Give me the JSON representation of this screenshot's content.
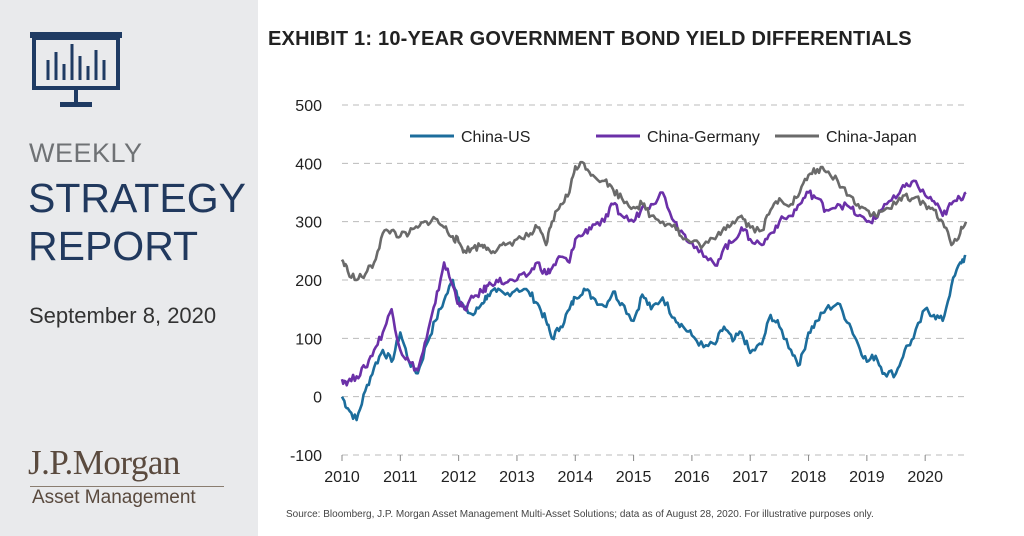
{
  "sidebar": {
    "weekly": "WEEKLY",
    "strategy_line1": "STRATEGY",
    "strategy_line2": "REPORT",
    "date": "September 8, 2020",
    "logo_main": "J.P.Morgan",
    "logo_sub": "Asset Management"
  },
  "source_note": "Source: Bloomberg, J.P. Morgan Asset Management Multi-Asset Solutions; data as of August 28, 2020. For illustrative purposes only.",
  "colors": {
    "china_us": "#1c6d9c",
    "china_germany": "#6b30a8",
    "china_japan": "#6a6a6a",
    "navy": "#21395e"
  },
  "chart_data": {
    "type": "line",
    "title": "EXHIBIT 1: 10-YEAR GOVERNMENT BOND YIELD DIFFERENTIALS",
    "xlabel": "",
    "ylabel": "",
    "ylim": [
      -100,
      500
    ],
    "xlim": [
      2010,
      2020.7
    ],
    "yticks": [
      "-100",
      "0",
      "100",
      "200",
      "300",
      "400",
      "500"
    ],
    "xticks": [
      "2010",
      "2011",
      "2012",
      "2013",
      "2014",
      "2015",
      "2016",
      "2017",
      "2018",
      "2019",
      "2020"
    ],
    "legend": "top",
    "series": [
      {
        "name": "China-US",
        "x": [
          2010,
          2010.1,
          2010.25,
          2010.4,
          2010.55,
          2010.7,
          2010.85,
          2011,
          2011.15,
          2011.3,
          2011.45,
          2011.6,
          2011.75,
          2011.9,
          2012,
          2012.1,
          2012.25,
          2012.4,
          2012.5,
          2012.65,
          2012.8,
          2013,
          2013.2,
          2013.35,
          2013.5,
          2013.6,
          2013.75,
          2013.9,
          2014,
          2014.15,
          2014.3,
          2014.5,
          2014.65,
          2014.8,
          2015,
          2015.15,
          2015.3,
          2015.5,
          2015.7,
          2015.85,
          2016,
          2016.2,
          2016.4,
          2016.55,
          2016.7,
          2016.85,
          2017,
          2017.2,
          2017.35,
          2017.5,
          2017.7,
          2017.85,
          2018,
          2018.15,
          2018.3,
          2018.5,
          2018.7,
          2018.85,
          2019,
          2019.15,
          2019.3,
          2019.5,
          2019.65,
          2019.8,
          2020,
          2020.15,
          2020.3,
          2020.45,
          2020.6,
          2020.7
        ],
        "values": [
          0,
          -20,
          -40,
          10,
          50,
          80,
          60,
          110,
          60,
          40,
          90,
          130,
          165,
          200,
          170,
          150,
          140,
          160,
          175,
          180,
          175,
          185,
          180,
          160,
          130,
          100,
          120,
          150,
          170,
          185,
          170,
          155,
          180,
          160,
          130,
          175,
          150,
          170,
          135,
          120,
          105,
          85,
          90,
          120,
          95,
          110,
          75,
          90,
          140,
          120,
          80,
          55,
          110,
          130,
          150,
          160,
          125,
          90,
          60,
          70,
          40,
          40,
          80,
          100,
          150,
          140,
          130,
          190,
          230,
          240
        ]
      },
      {
        "name": "China-Germany",
        "x": [
          2010,
          2010.1,
          2010.25,
          2010.4,
          2010.55,
          2010.7,
          2010.85,
          2011,
          2011.15,
          2011.3,
          2011.45,
          2011.6,
          2011.75,
          2011.9,
          2012,
          2012.1,
          2012.25,
          2012.4,
          2012.5,
          2012.65,
          2012.8,
          2013,
          2013.2,
          2013.35,
          2013.5,
          2013.6,
          2013.75,
          2013.9,
          2014,
          2014.15,
          2014.3,
          2014.5,
          2014.65,
          2014.8,
          2015,
          2015.15,
          2015.3,
          2015.5,
          2015.7,
          2015.85,
          2016,
          2016.2,
          2016.4,
          2016.55,
          2016.7,
          2016.85,
          2017,
          2017.2,
          2017.35,
          2017.5,
          2017.7,
          2017.85,
          2018,
          2018.15,
          2018.3,
          2018.5,
          2018.7,
          2018.85,
          2019,
          2019.15,
          2019.3,
          2019.5,
          2019.65,
          2019.8,
          2020,
          2020.15,
          2020.3,
          2020.45,
          2020.6,
          2020.7
        ],
        "values": [
          30,
          25,
          35,
          50,
          80,
          110,
          150,
          80,
          60,
          45,
          100,
          160,
          230,
          190,
          160,
          150,
          170,
          180,
          190,
          200,
          195,
          200,
          210,
          230,
          210,
          220,
          240,
          230,
          270,
          280,
          295,
          300,
          330,
          310,
          300,
          325,
          330,
          350,
          300,
          280,
          265,
          240,
          225,
          255,
          265,
          290,
          270,
          260,
          280,
          300,
          310,
          330,
          350,
          340,
          320,
          330,
          325,
          310,
          300,
          305,
          330,
          340,
          360,
          370,
          345,
          335,
          310,
          330,
          340,
          350
        ]
      },
      {
        "name": "China-Japan",
        "x": [
          2010,
          2010.1,
          2010.25,
          2010.4,
          2010.55,
          2010.7,
          2010.85,
          2011,
          2011.15,
          2011.3,
          2011.45,
          2011.6,
          2011.75,
          2011.9,
          2012,
          2012.1,
          2012.25,
          2012.4,
          2012.5,
          2012.65,
          2012.8,
          2013,
          2013.2,
          2013.35,
          2013.5,
          2013.6,
          2013.75,
          2013.9,
          2014,
          2014.15,
          2014.3,
          2014.5,
          2014.65,
          2014.8,
          2015,
          2015.15,
          2015.3,
          2015.5,
          2015.7,
          2015.85,
          2016,
          2016.2,
          2016.4,
          2016.55,
          2016.7,
          2016.85,
          2017,
          2017.2,
          2017.35,
          2017.5,
          2017.7,
          2017.85,
          2018,
          2018.15,
          2018.3,
          2018.5,
          2018.7,
          2018.85,
          2019,
          2019.15,
          2019.3,
          2019.5,
          2019.65,
          2019.8,
          2020,
          2020.15,
          2020.3,
          2020.45,
          2020.6,
          2020.7
        ],
        "values": [
          235,
          215,
          200,
          210,
          230,
          280,
          285,
          275,
          280,
          290,
          300,
          305,
          290,
          275,
          265,
          250,
          255,
          260,
          255,
          250,
          260,
          270,
          275,
          290,
          260,
          300,
          330,
          350,
          395,
          400,
          380,
          370,
          355,
          340,
          325,
          330,
          310,
          300,
          295,
          270,
          265,
          260,
          270,
          290,
          300,
          310,
          290,
          285,
          320,
          340,
          330,
          350,
          380,
          390,
          385,
          370,
          345,
          330,
          320,
          310,
          320,
          330,
          345,
          340,
          330,
          320,
          300,
          260,
          280,
          300
        ]
      }
    ]
  }
}
